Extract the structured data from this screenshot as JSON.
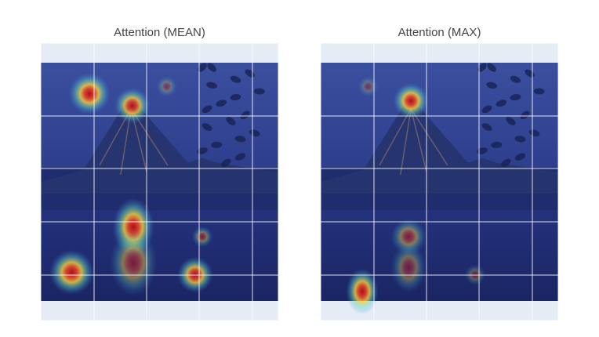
{
  "colors": {
    "plot_bg": "#e5ecf6",
    "grid": "#ffffff",
    "sky": "#3a4d9c",
    "water": "#1e2a70",
    "hot": "#c81e1e"
  },
  "chart_data": [
    {
      "type": "heatmap",
      "title": "Attention (MEAN)",
      "grid": true,
      "description_hotspots": [
        {
          "cx": 0.205,
          "cy": 0.13,
          "r": 0.07,
          "intensity": 0.95
        },
        {
          "cx": 0.385,
          "cy": 0.18,
          "r": 0.06,
          "intensity": 0.9
        },
        {
          "cx": 0.39,
          "cy": 0.69,
          "r": 0.07,
          "intensity": 0.95
        },
        {
          "cx": 0.39,
          "cy": 0.84,
          "r": 0.08,
          "intensity": 0.55
        },
        {
          "cx": 0.13,
          "cy": 0.88,
          "r": 0.075,
          "intensity": 0.95
        },
        {
          "cx": 0.65,
          "cy": 0.89,
          "r": 0.06,
          "intensity": 0.9
        },
        {
          "cx": 0.68,
          "cy": 0.73,
          "r": 0.035,
          "intensity": 0.5
        },
        {
          "cx": 0.53,
          "cy": 0.1,
          "r": 0.035,
          "intensity": 0.35
        }
      ]
    },
    {
      "type": "heatmap",
      "title": "Attention (MAX)",
      "grid": true,
      "description_hotspots": [
        {
          "cx": 0.38,
          "cy": 0.16,
          "r": 0.06,
          "intensity": 0.95
        },
        {
          "cx": 0.37,
          "cy": 0.73,
          "r": 0.06,
          "intensity": 0.55
        },
        {
          "cx": 0.37,
          "cy": 0.86,
          "r": 0.06,
          "intensity": 0.45
        },
        {
          "cx": 0.175,
          "cy": 0.96,
          "r": 0.055,
          "intensity": 0.95
        },
        {
          "cx": 0.65,
          "cy": 0.89,
          "r": 0.035,
          "intensity": 0.35
        },
        {
          "cx": 0.2,
          "cy": 0.1,
          "r": 0.035,
          "intensity": 0.3
        }
      ]
    }
  ]
}
